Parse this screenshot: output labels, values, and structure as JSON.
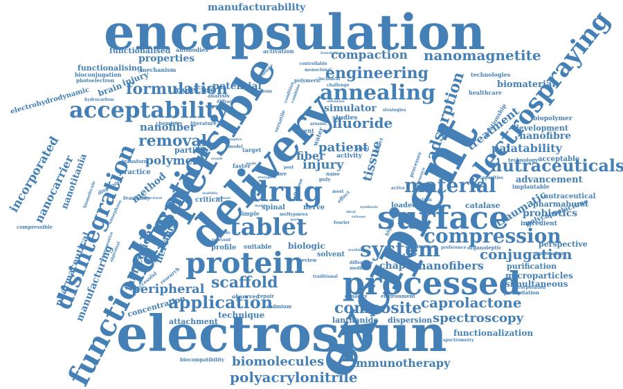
{
  "colors": {
    "word": "#4480b6",
    "background": "#ffffff"
  },
  "words": {
    "encapsulation": "encapsulation",
    "electrospun": "electrospun",
    "excipient": "excipient",
    "dispersible": "dispersible",
    "delivery": "delivery",
    "functionalisation": "functionalisation",
    "processed": "processed",
    "surface": "surface",
    "protein": "protein",
    "drug": "drug",
    "tablet": "tablet",
    "electrospraying": "electrospraying",
    "disintegration": "disintegration",
    "acceptability": "acceptability",
    "annealing": "annealing",
    "material": "material",
    "compression": "compression",
    "system": "system",
    "nutraceuticals": "nutraceuticals",
    "application": "application",
    "composite": "composite",
    "scaffold": "scaffold",
    "engineering": "engineering",
    "fluoride": "fluoride",
    "adsorption": "adsorption",
    "conjugation": "conjugation",
    "compaction": "compaction",
    "nanomagnetite": "nanomagnetite",
    "formulation": "formulation",
    "removal": "removal",
    "polymer": "polymer",
    "caprolactone": "caprolactone",
    "spectroscopy": "spectroscopy",
    "manufacturing": "manufacturing",
    "fabrication": "fabrication",
    "peripheral": "peripheral",
    "polyacrylonitrile": "polyacrylonitrile",
    "biomolecules": "biomolecules",
    "immunotherapy": "immunotherapy",
    "manufacturability": "manufacturability",
    "incorporated": "incorporated",
    "nanocarrier": "nanocarrier",
    "nanotitania": "nanotitania",
    "pharmaceutical": "pharmaceutical",
    "palatability": "palatability",
    "nanofibre": "nanofibre",
    "nanofiber": "nanofiber",
    "nanofibers": "nanofibers",
    "traumatic": "traumatic",
    "probiotics": "probiotics",
    "patient": "patient",
    "tissue": "tissue",
    "injury": "injury",
    "fiber": "fiber",
    "treatment": "treatment",
    "biomaterial": "biomaterial",
    "development": "development",
    "advancement": "advancement",
    "catalase": "catalase",
    "chapter": "chapter",
    "simulator": "simulator",
    "properties": "properties",
    "functionalised": "functionalised",
    "functionalising": "functionalising",
    "brain": "brain",
    "injury_small": "injury",
    "molecule": "molecule",
    "potential": "potential",
    "method": "method",
    "nervous": "nervous",
    "technique": "technique",
    "attachment": "attachment",
    "concentration": "concentration",
    "lanthanide": "lanthanide",
    "dispersion": "dispersion",
    "functionalization": "functionalization",
    "microparticles": "microparticles",
    "purification": "purification",
    "simultaneous": "simultaneous",
    "perspective": "perspective",
    "polycaprolactone": "polycaprolactone",
    "ingredient": "ingredient",
    "pharmaburst": "pharmaburst",
    "nutraceutical": "nutraceutical",
    "implantable": "implantable",
    "technology": "technology",
    "acceptable": "acceptable",
    "biopolymer": "biopolymer",
    "relationship": "relationship",
    "healthcare": "healthcare",
    "technologies": "technologies",
    "bioconjugation": "bioconjugation",
    "photoelectron": "photoelectron",
    "electrohydrodynamic": "electrohydrodynamic",
    "hydrocarbon": "hydrocarbon",
    "antibodies": "antibodies",
    "mechanism": "mechanism",
    "activation": "activation",
    "studies": "studies",
    "biologic": "biologic",
    "solvent": "solvent",
    "spinal": "spinal",
    "nerve": "nerve",
    "loaded": "loaded",
    "particle": "particle",
    "practice": "practice",
    "critical": "critical",
    "profile": "profile",
    "suitable": "suitable",
    "observed": "observed",
    "repair": "repair",
    "cadmium": "cadmium",
    "capacity": "capacity",
    "environment": "environment",
    "precipitation": "precipitation",
    "spectrometry": "spectrometry",
    "biocompatibility": "biocompatibility",
    "compressible": "compressible",
    "feasibility": "feasibility",
    "transform": "transform",
    "chemistry": "chemistry",
    "literature": "literature",
    "analysis": "analysis",
    "diffraction": "diffraction",
    "successful": "successful",
    "research": "research",
    "recent": "recent",
    "activity": "activity",
    "water": "water",
    "direct": "direct",
    "target": "target",
    "simple": "simple",
    "post": "post",
    "active": "active",
    "electron": "electron",
    "chemical": "chemical",
    "organoleptic": "organoleptic",
    "preference": "preference",
    "architecture": "architecture",
    "regeneration": "regeneration",
    "incorporation": "incorporation",
    "review": "review",
    "difference": "difference",
    "medicine": "medicine",
    "traditional": "traditional",
    "highest": "highest",
    "processes": "processes",
    "presence": "presence",
    "capacities": "capacities",
    "avicel": "avicel",
    "nano": "nano",
    "poly": "poly",
    "fourier": "fourier",
    "melt": "melt",
    "type": "type",
    "area": "area",
    "most": "most",
    "effect": "effect",
    "cellulose": "cellulose",
    "fibre": "fibre",
    "strategies": "strategies",
    "versatile": "versatile",
    "condition": "condition",
    "combine": "combine",
    "polymeric": "polymeric",
    "inclinical": "inclinical",
    "challenge": "challenge",
    "controllable": "controllable",
    "monoclonal": "monoclonal",
    "evaluate": "evaluate",
    "maximum": "maximum",
    "translation": "translation",
    "arsenic": "arsenic",
    "attention": "attention",
    "vapor": "vapor",
    "dispersive": "dispersive",
    "amorphous": "amorphous",
    "regenerative": "regenerative",
    "appraisal": "appraisal",
    "structural": "structural",
    "biomolecule": "biomolecule",
    "washing": "washing",
    "relevant": "relevant",
    "strategy": "strategy",
    "faster": "faster",
    "mode": "mode",
    "storage": "storage",
    "model": "model",
    "result": "result",
    "complex": "complex",
    "matrix": "matrix",
    "present": "present",
    "stability": "stability",
    "part": "part",
    "ideal": "ideal",
    "synthesis": "synthesis",
    "release": "release"
  }
}
